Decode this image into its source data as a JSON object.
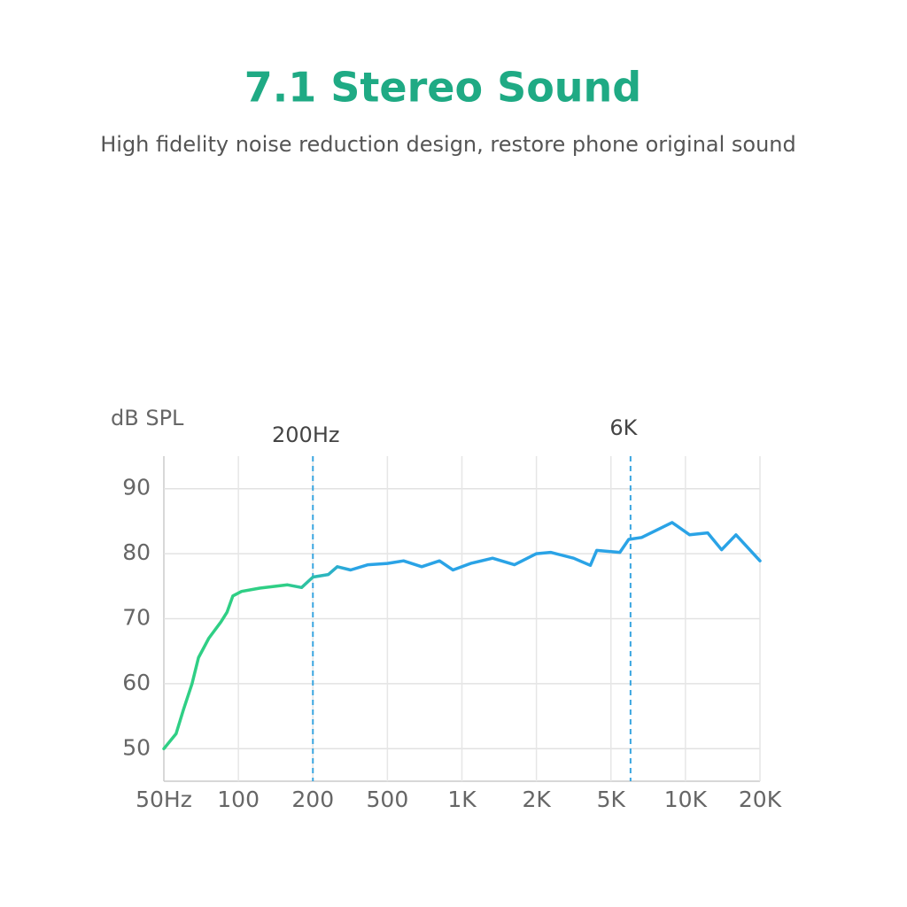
{
  "chart_data": {
    "type": "line",
    "title": "7.1 Stereo Sound",
    "subtitle": "High fidelity noise reduction design, restore phone original sound",
    "y_label": "dB SPL",
    "x": [
      50,
      56,
      60,
      65,
      69,
      76,
      85,
      90,
      95,
      103,
      122,
      158,
      180,
      200,
      242,
      270,
      318,
      394,
      500,
      581,
      688,
      812,
      920,
      1085,
      1330,
      1630,
      2000,
      2380,
      3160,
      3880,
      4200,
      5430,
      5900,
      6650,
      8830,
      10400,
      12300,
      14000,
      16000,
      20000
    ],
    "series": [
      {
        "colors": [
          "#2fcf85",
          "#2aa3e6"
        ],
        "values": [
          50,
          52.3,
          56,
          60,
          64,
          67,
          69.5,
          71,
          73.5,
          74.2,
          74.7,
          75.2,
          74.8,
          76.4,
          76.8,
          78,
          77.5,
          78.3,
          78.5,
          78.9,
          78,
          78.9,
          77.5,
          78.5,
          79.3,
          78.3,
          80,
          80.2,
          79.3,
          78.2,
          80.5,
          80.2,
          82.2,
          82.5,
          84.8,
          82.9,
          83.2,
          80.6,
          82.9,
          78.9
        ]
      }
    ],
    "xticks": [
      {
        "value": 50,
        "label": "50Hz"
      },
      100,
      200,
      500,
      {
        "value": 1000,
        "label": "1K"
      },
      {
        "value": 2000,
        "label": "2K"
      },
      {
        "value": 5000,
        "label": "5K"
      },
      {
        "value": 10000,
        "label": "10K"
      },
      {
        "value": 20000,
        "label": "20K"
      }
    ],
    "xlim": [
      50,
      20000
    ],
    "ylim": [
      45,
      95
    ],
    "yticks": [
      50,
      60,
      70,
      80,
      90
    ],
    "grid": true,
    "markers": [
      {
        "x": 200,
        "label": "200Hz"
      },
      {
        "x": 6000,
        "label": "6K"
      }
    ],
    "marker_color": "#3aa6e0"
  }
}
